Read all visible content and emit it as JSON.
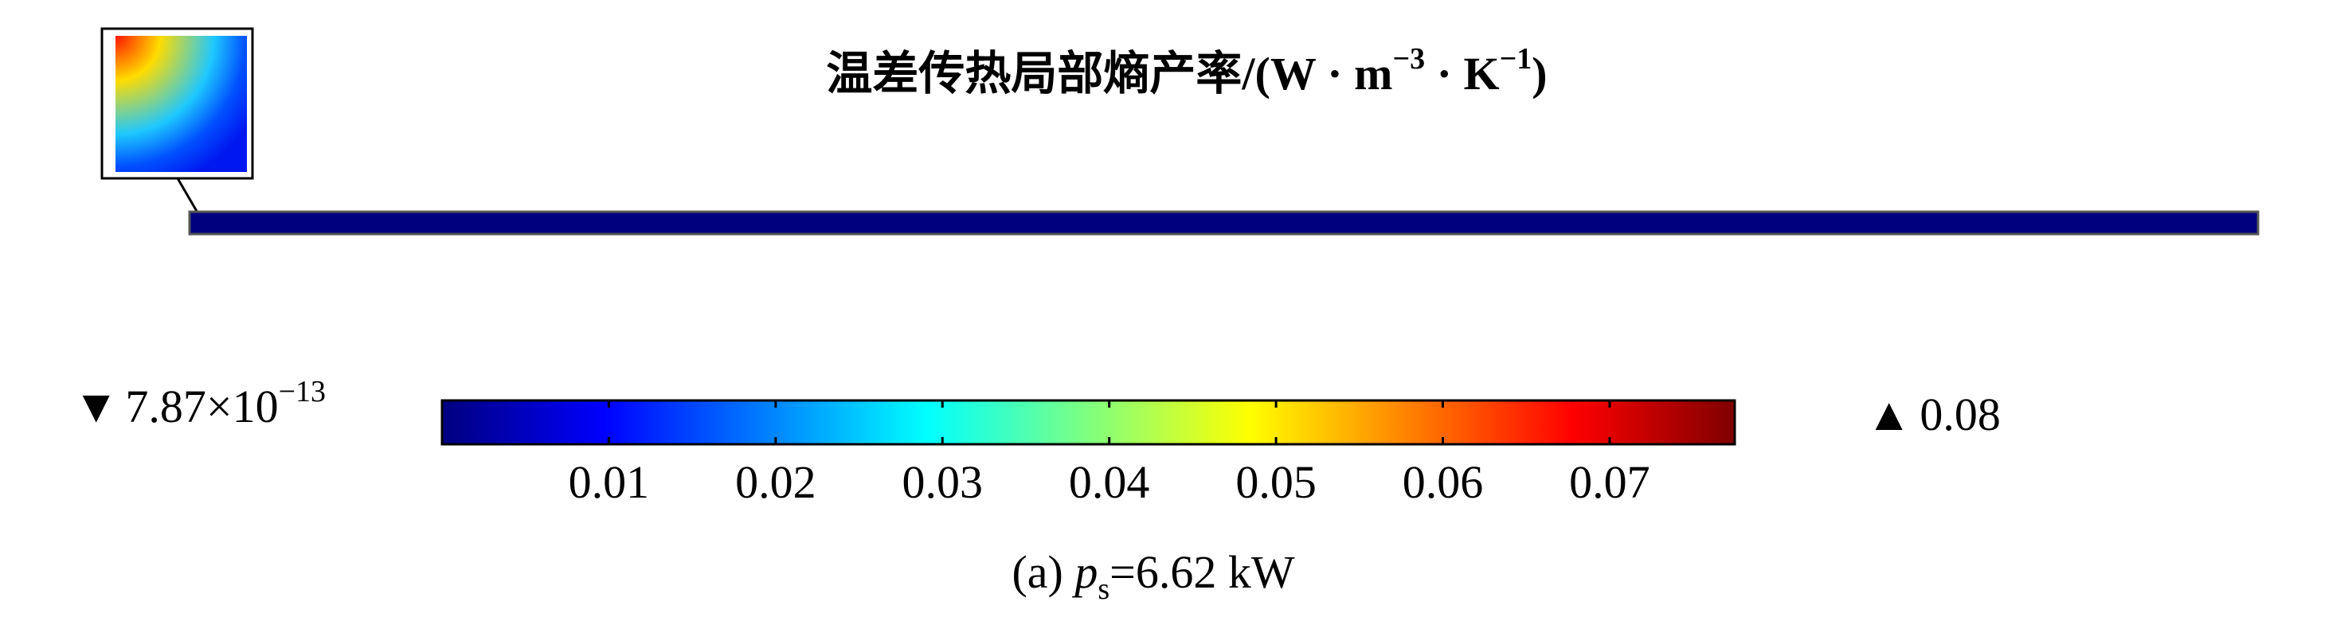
{
  "chart_data": {
    "type": "heatmap",
    "title": {
      "main": "温差传热局部熵产率/(W · m",
      "exp1": "−3",
      "mid": " · K",
      "exp2": "−1",
      "tail": ")"
    },
    "min_marker": {
      "symbol": "▼",
      "mantissa": "7.87×10",
      "exponent": "−13"
    },
    "max_marker": {
      "symbol": "▲",
      "value": "0.08"
    },
    "colorbar": {
      "range": [
        0,
        0.0775
      ],
      "ticks": [
        0.01,
        0.02,
        0.03,
        0.04,
        0.05,
        0.06,
        0.07
      ],
      "tick_labels": [
        "0.01",
        "0.02",
        "0.03",
        "0.04",
        "0.05",
        "0.06",
        "0.07"
      ],
      "colormap": [
        "#00007f",
        "#0000ff",
        "#007fff",
        "#00ffff",
        "#7fff7f",
        "#ffff00",
        "#ff7f00",
        "#ff0000",
        "#7f0000"
      ]
    },
    "domain_color": "#00007f",
    "inset": {
      "hot_corner": "top-left",
      "colors": [
        "#ff1400",
        "#ffdc00",
        "#1ec8ff",
        "#0050ff",
        "#0018f0"
      ]
    },
    "caption": {
      "prefix": "(a) ",
      "var": "p",
      "sub": "s",
      "suffix": "=6.62 kW"
    }
  }
}
